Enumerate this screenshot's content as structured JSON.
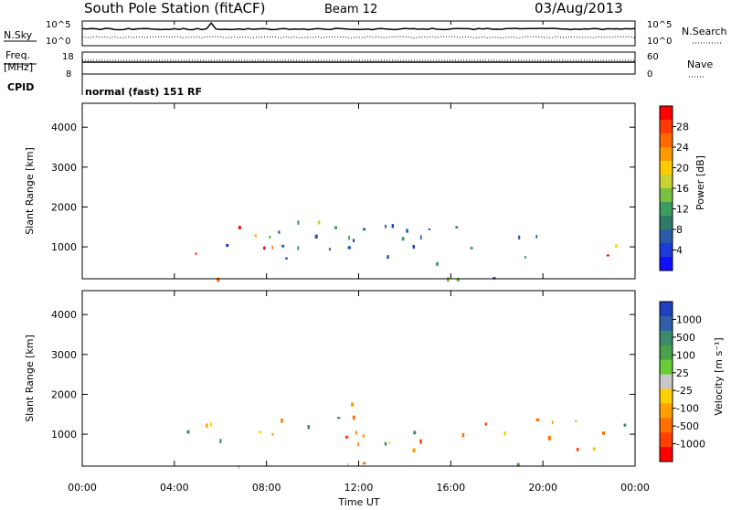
{
  "header": {
    "station": "South Pole Station (fitACF)",
    "beam": "Beam 12",
    "date": "03/Aug/2013"
  },
  "top_panels": {
    "nsky_label": "N.Sky",
    "nsky_ticks": [
      "10^5",
      "10^0"
    ],
    "nsearch_label": "N.Search",
    "nsearch_ticks": [
      "10^5",
      "10^0"
    ],
    "freq_label_1": "Freq.",
    "freq_label_2": "[MHz]",
    "freq_ticks": [
      "18",
      "8"
    ],
    "nave_label": "Nave",
    "nave_ticks": [
      "60",
      "0"
    ],
    "cpid_label": "CPID",
    "cpid_value": "normal (fast) 151 RF"
  },
  "chart_data": [
    {
      "type": "heatmap",
      "name": "power-panel",
      "ylabel": "Slant Range [km]",
      "yticks": [
        "4000",
        "3000",
        "2000",
        "1000"
      ],
      "ylim": [
        200,
        4600
      ],
      "xlim": [
        0,
        24
      ],
      "colorbar": {
        "label": "Power [dB]",
        "ticks": [
          "28",
          "24",
          "20",
          "16",
          "12",
          "8",
          "4"
        ],
        "colors": [
          "#ff0000",
          "#ff3a00",
          "#ff6a00",
          "#ff9a00",
          "#ffcc00",
          "#c8d230",
          "#78c040",
          "#3c9c60",
          "#2e7a6a",
          "#2a5aa8",
          "#1e3ad8",
          "#1010ff"
        ]
      },
      "regions": [
        {
          "x": [
            0.3,
            24
          ],
          "y": [
            200,
            330
          ],
          "level": "mixed"
        },
        {
          "x": [
            4.2,
            22.5
          ],
          "y": [
            600,
            1600
          ],
          "level": "low"
        },
        {
          "x": [
            4.5,
            8.7
          ],
          "y": [
            750,
            1550
          ],
          "level": "high"
        },
        {
          "x": [
            8.5,
            11.8
          ],
          "y": [
            1000,
            1900
          ],
          "level": "mid"
        },
        {
          "x": [
            22.3,
            24
          ],
          "y": [
            700,
            1500
          ],
          "level": "high"
        }
      ]
    },
    {
      "type": "heatmap",
      "name": "velocity-panel",
      "ylabel": "Slant Range [km]",
      "yticks": [
        "4000",
        "3000",
        "2000",
        "1000"
      ],
      "ylim": [
        200,
        4600
      ],
      "xlim": [
        0,
        24
      ],
      "xticks": [
        "00:00",
        "04:00",
        "08:00",
        "12:00",
        "16:00",
        "20:00",
        "00:00"
      ],
      "xlabel": "Time UT",
      "colorbar": {
        "label": "Velocity [m s⁻¹]",
        "ticks": [
          "1000",
          "500",
          "100",
          "25",
          "-25",
          "-100",
          "-500",
          "-1000"
        ],
        "colors": [
          "#2040c0",
          "#3060a8",
          "#3a8a6a",
          "#4aa04a",
          "#66cc33",
          "#c8c8c8",
          "#ffd000",
          "#ffa000",
          "#ff7000",
          "#ff4000",
          "#ff0000"
        ]
      },
      "regions": [
        {
          "x": [
            0.3,
            24
          ],
          "y": [
            200,
            330
          ],
          "level": "mixed"
        },
        {
          "x": [
            4.2,
            22.5
          ],
          "y": [
            600,
            1600
          ],
          "level": "neg"
        },
        {
          "x": [
            8.5,
            11.8
          ],
          "y": [
            1000,
            1900
          ],
          "level": "neg"
        },
        {
          "x": [
            22.3,
            24
          ],
          "y": [
            700,
            1500
          ],
          "level": "mixpos"
        }
      ]
    }
  ]
}
